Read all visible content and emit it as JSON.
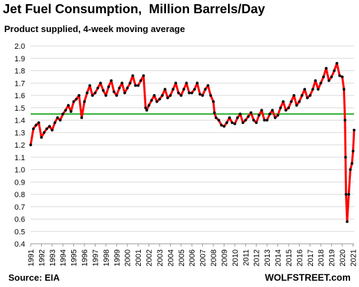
{
  "chart_data": {
    "type": "line",
    "title": "Jet Fuel Consumption,  Million Barrels/Day",
    "subtitle": "Product supplied, 4-week moving average",
    "xlabel": "",
    "ylabel": "",
    "xlim": [
      1991,
      2021.1
    ],
    "ylim": [
      0.4,
      2.0
    ],
    "yticks": [
      "0.4",
      "0.5",
      "0.6",
      "0.7",
      "0.8",
      "0.9",
      "1.0",
      "1.1",
      "1.2",
      "1.3",
      "1.4",
      "1.5",
      "1.6",
      "1.7",
      "1.8",
      "1.9",
      "2.0"
    ],
    "xticks": [
      "1991",
      "1992",
      "1993",
      "1994",
      "1995",
      "1996",
      "1997",
      "1998",
      "1999",
      "2000",
      "2001",
      "2002",
      "2003",
      "2004",
      "2005",
      "2006",
      "2007",
      "2008",
      "2009",
      "2010",
      "2011",
      "2012",
      "2013",
      "2014",
      "2015",
      "2016",
      "2017",
      "2018",
      "2019",
      "2020",
      "2021"
    ],
    "grid": "horizontal",
    "reference_line": {
      "value": 1.45,
      "color": "#22aa22"
    },
    "series": [
      {
        "line_color": "#ff0000",
        "marker_color": "#111111",
        "x": [
          1991.0,
          1991.25,
          1991.5,
          1991.75,
          1992.0,
          1992.25,
          1992.5,
          1992.75,
          1993.0,
          1993.25,
          1993.5,
          1993.75,
          1994.0,
          1994.25,
          1994.5,
          1994.75,
          1995.0,
          1995.25,
          1995.5,
          1995.75,
          1996.0,
          1996.25,
          1996.5,
          1996.75,
          1997.0,
          1997.25,
          1997.5,
          1997.75,
          1998.0,
          1998.25,
          1998.5,
          1998.75,
          1999.0,
          1999.25,
          1999.5,
          1999.75,
          2000.0,
          2000.25,
          2000.5,
          2000.75,
          2001.0,
          2001.25,
          2001.5,
          2001.7,
          2001.8,
          2002.0,
          2002.25,
          2002.5,
          2002.75,
          2003.0,
          2003.25,
          2003.5,
          2003.75,
          2004.0,
          2004.25,
          2004.5,
          2004.75,
          2005.0,
          2005.25,
          2005.5,
          2005.75,
          2006.0,
          2006.25,
          2006.5,
          2006.75,
          2007.0,
          2007.25,
          2007.5,
          2007.75,
          2008.0,
          2008.1,
          2008.25,
          2008.5,
          2008.75,
          2009.0,
          2009.25,
          2009.5,
          2009.75,
          2010.0,
          2010.25,
          2010.5,
          2010.75,
          2011.0,
          2011.25,
          2011.5,
          2011.75,
          2012.0,
          2012.25,
          2012.5,
          2012.75,
          2013.0,
          2013.25,
          2013.5,
          2013.75,
          2014.0,
          2014.25,
          2014.5,
          2014.75,
          2015.0,
          2015.25,
          2015.5,
          2015.75,
          2016.0,
          2016.25,
          2016.5,
          2016.75,
          2017.0,
          2017.25,
          2017.5,
          2017.75,
          2018.0,
          2018.25,
          2018.5,
          2018.75,
          2019.0,
          2019.25,
          2019.5,
          2019.75,
          2020.0,
          2020.15,
          2020.25,
          2020.3,
          2020.35,
          2020.45,
          2020.6,
          2020.75,
          2020.9,
          2021.0,
          2021.1
        ],
        "y": [
          1.2,
          1.33,
          1.36,
          1.38,
          1.26,
          1.3,
          1.33,
          1.35,
          1.32,
          1.38,
          1.42,
          1.4,
          1.45,
          1.48,
          1.52,
          1.47,
          1.55,
          1.57,
          1.6,
          1.42,
          1.55,
          1.62,
          1.68,
          1.6,
          1.62,
          1.66,
          1.7,
          1.64,
          1.6,
          1.67,
          1.72,
          1.63,
          1.6,
          1.66,
          1.7,
          1.62,
          1.66,
          1.7,
          1.76,
          1.68,
          1.68,
          1.72,
          1.76,
          1.5,
          1.48,
          1.52,
          1.56,
          1.6,
          1.55,
          1.57,
          1.6,
          1.65,
          1.58,
          1.6,
          1.65,
          1.7,
          1.62,
          1.6,
          1.65,
          1.7,
          1.62,
          1.62,
          1.65,
          1.7,
          1.61,
          1.6,
          1.65,
          1.68,
          1.6,
          1.55,
          1.46,
          1.42,
          1.4,
          1.36,
          1.35,
          1.38,
          1.42,
          1.38,
          1.37,
          1.42,
          1.45,
          1.38,
          1.4,
          1.43,
          1.46,
          1.4,
          1.38,
          1.44,
          1.48,
          1.4,
          1.4,
          1.45,
          1.48,
          1.42,
          1.44,
          1.5,
          1.55,
          1.48,
          1.5,
          1.55,
          1.6,
          1.52,
          1.55,
          1.6,
          1.65,
          1.58,
          1.6,
          1.65,
          1.72,
          1.65,
          1.7,
          1.75,
          1.82,
          1.72,
          1.75,
          1.8,
          1.86,
          1.76,
          1.75,
          1.65,
          1.4,
          1.1,
          0.8,
          0.58,
          0.8,
          1.0,
          1.05,
          1.15,
          1.32
        ]
      }
    ],
    "source": "Source: EIA",
    "brand": "WOLFSTREET.com"
  }
}
